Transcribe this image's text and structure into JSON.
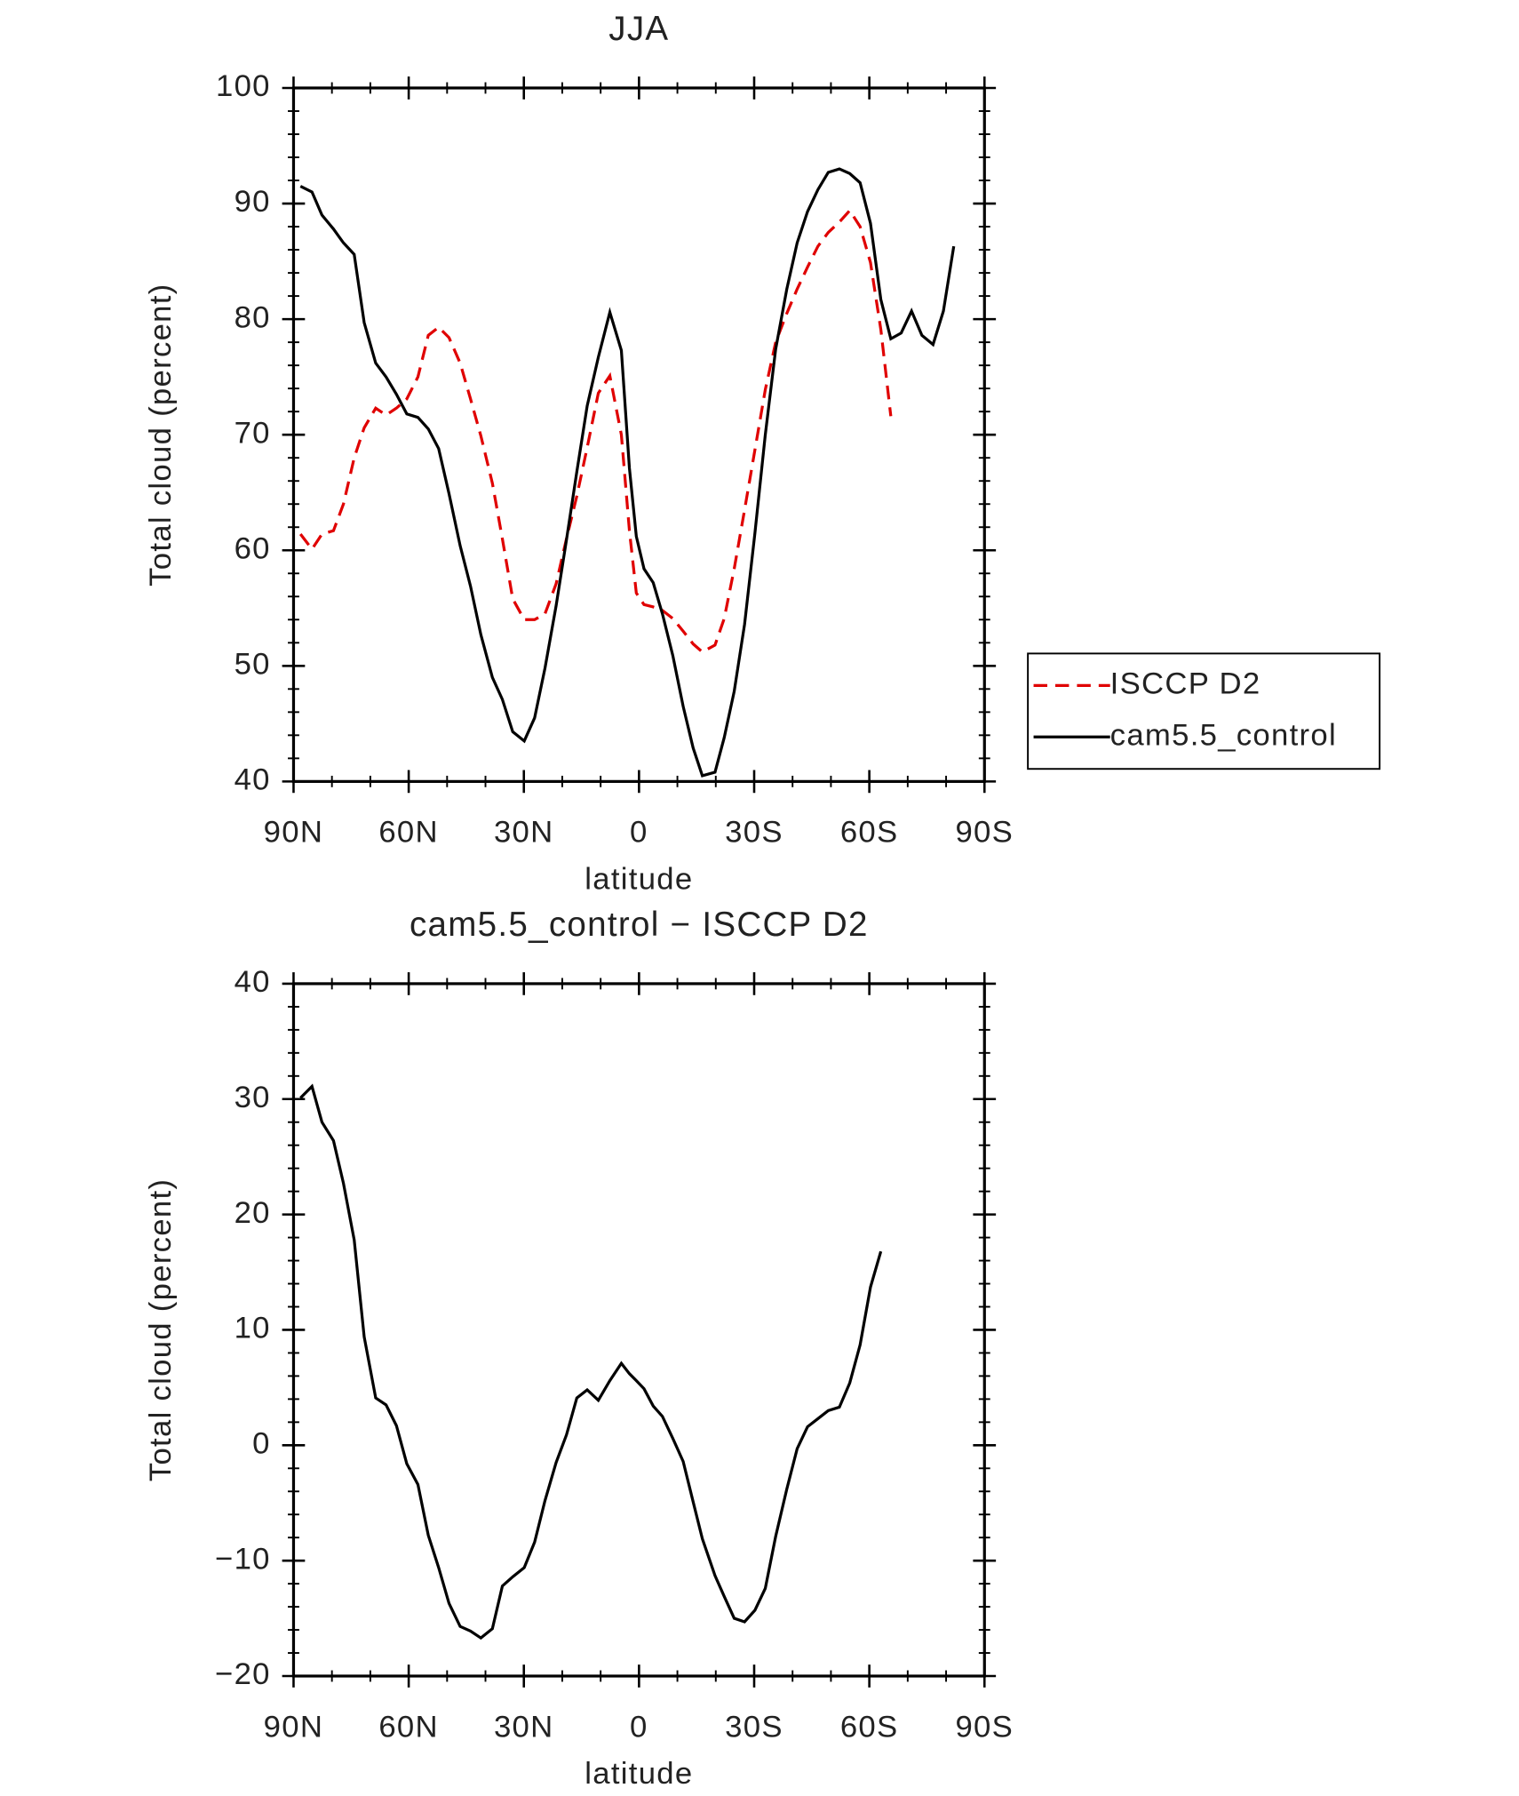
{
  "chart_data": [
    {
      "type": "line",
      "title": "JJA",
      "xlabel": "latitude",
      "ylabel": "Total cloud (percent)",
      "x": [
        88.2,
        85.2,
        82.6,
        79.6,
        77,
        74.2,
        71.6,
        68.6,
        65.9,
        63.2,
        60.5,
        57.6,
        54.9,
        52.2,
        49.5,
        46.6,
        43.9,
        41.2,
        38.2,
        35.6,
        32.9,
        29.9,
        27.2,
        24.5,
        21.6,
        18.9,
        16.2,
        13.5,
        10.6,
        7.6,
        4.6,
        2.5,
        0.7,
        -1.3,
        -3.7,
        -6.1,
        -8.8,
        -11.5,
        -14.1,
        -16.5,
        -19.8,
        -22.2,
        -24.8,
        -27.5,
        -30.2,
        -32.9,
        -35.6,
        -38.5,
        -41.2,
        -43.9,
        -46.6,
        -49.3,
        -52.2,
        -54.9,
        -57.6,
        -60.3,
        -63,
        -65.6,
        -68.3,
        -71,
        -73.7,
        -76.6,
        -79.3,
        -82
      ],
      "series": [
        {
          "name": "ISCCP D2",
          "color": "#e00000",
          "dashed": true,
          "values": [
            61.4,
            60.1,
            61.4,
            61.7,
            64.0,
            68.0,
            70.6,
            72.3,
            71.7,
            72.3,
            73.1,
            75.0,
            78.6,
            79.3,
            78.4,
            76.2,
            73.1,
            69.9,
            65.8,
            61.0,
            55.8,
            54.0,
            54.0,
            54.5,
            57.1,
            61.0,
            64.7,
            68.9,
            73.6,
            75.1,
            70.0,
            61.7,
            56.3,
            55.3,
            55.1,
            54.8,
            54.1,
            53.0,
            51.9,
            51.2,
            51.8,
            54.1,
            58.4,
            63.5,
            68.7,
            73.9,
            78.0,
            80.5,
            82.6,
            84.5,
            86.3,
            87.5,
            88.4,
            89.4,
            88.0,
            84.9,
            79.1,
            71.6,
            null,
            null,
            null,
            null,
            null,
            null
          ]
        },
        {
          "name": "cam5.5_control",
          "color": "#000000",
          "dashed": false,
          "values": [
            91.5,
            91.0,
            89.0,
            87.8,
            86.6,
            85.6,
            79.7,
            76.2,
            75.0,
            73.5,
            71.8,
            71.5,
            70.5,
            68.8,
            64.9,
            60.4,
            56.9,
            52.7,
            49.0,
            47.1,
            44.3,
            43.5,
            45.5,
            49.8,
            55.2,
            60.9,
            66.8,
            72.5,
            76.7,
            80.6,
            77.3,
            67.1,
            61.2,
            58.4,
            57.2,
            54.5,
            50.9,
            46.5,
            42.9,
            40.5,
            40.8,
            43.8,
            47.8,
            53.6,
            61.5,
            70.0,
            77.4,
            82.6,
            86.6,
            89.3,
            91.2,
            92.7,
            93.0,
            92.6,
            91.8,
            88.3,
            81.7,
            78.3,
            78.8,
            80.7,
            78.6,
            77.8,
            80.7,
            86.3
          ]
        }
      ],
      "xlim": [
        90,
        -90
      ],
      "xticks": [
        {
          "value": 90,
          "label": "90N"
        },
        {
          "value": 60,
          "label": "60N"
        },
        {
          "value": 30,
          "label": "30N"
        },
        0,
        {
          "value": -30,
          "label": "30S"
        },
        {
          "value": -60,
          "label": "60S"
        },
        {
          "value": -90,
          "label": "90S"
        }
      ],
      "ylim": [
        40,
        100
      ],
      "yticks": [
        40,
        50,
        60,
        70,
        80,
        90,
        100
      ],
      "legend": "right"
    },
    {
      "type": "line",
      "title": "cam5.5_control − ISCCP D2",
      "xlabel": "latitude",
      "ylabel": "Total cloud (percent)",
      "x": [
        88.2,
        85.2,
        82.6,
        79.6,
        77,
        74.2,
        71.6,
        68.6,
        65.9,
        63.2,
        60.5,
        57.6,
        54.9,
        52.2,
        49.5,
        46.6,
        43.9,
        41.2,
        38.2,
        35.6,
        32.9,
        29.9,
        27.2,
        24.5,
        21.6,
        18.9,
        16.2,
        13.5,
        10.6,
        7.6,
        4.6,
        2.5,
        0.7,
        -1.3,
        -3.7,
        -6.1,
        -8.8,
        -11.5,
        -14.1,
        -16.5,
        -19.8,
        -22.2,
        -24.8,
        -27.5,
        -30.2,
        -32.9,
        -35.6,
        -38.5,
        -41.2,
        -43.9,
        -46.6,
        -49.3,
        -52.2,
        -54.9,
        -57.6,
        -60.3,
        -63
      ],
      "series": [
        {
          "color": "#000000",
          "dashed": false,
          "values": [
            30.1,
            31.1,
            28.0,
            26.4,
            22.7,
            17.8,
            9.4,
            4.1,
            3.5,
            1.7,
            -1.6,
            -3.4,
            -7.8,
            -10.6,
            -13.7,
            -15.7,
            -16.1,
            -16.7,
            -15.9,
            -12.2,
            -11.4,
            -10.6,
            -8.4,
            -4.8,
            -1.5,
            0.9,
            4.1,
            4.8,
            3.9,
            5.6,
            7.1,
            6.2,
            5.6,
            4.9,
            3.4,
            2.5,
            0.6,
            -1.4,
            -4.9,
            -8.1,
            -11.3,
            -13.1,
            -15.0,
            -15.3,
            -14.3,
            -12.4,
            -7.9,
            -3.8,
            -0.3,
            1.6,
            2.3,
            3.0,
            3.3,
            5.4,
            8.7,
            13.7,
            16.8
          ]
        }
      ],
      "xlim": [
        90,
        -90
      ],
      "xticks": [
        {
          "value": 90,
          "label": "90N"
        },
        {
          "value": 60,
          "label": "60N"
        },
        {
          "value": 30,
          "label": "30N"
        },
        0,
        {
          "value": -30,
          "label": "30S"
        },
        {
          "value": -60,
          "label": "60S"
        },
        {
          "value": -90,
          "label": "90S"
        }
      ],
      "ylim": [
        -20,
        40
      ],
      "yticks": [
        {
          "value": -20,
          "label": "−20"
        },
        {
          "value": -10,
          "label": "−10"
        },
        0,
        10,
        20,
        30,
        40
      ]
    }
  ]
}
